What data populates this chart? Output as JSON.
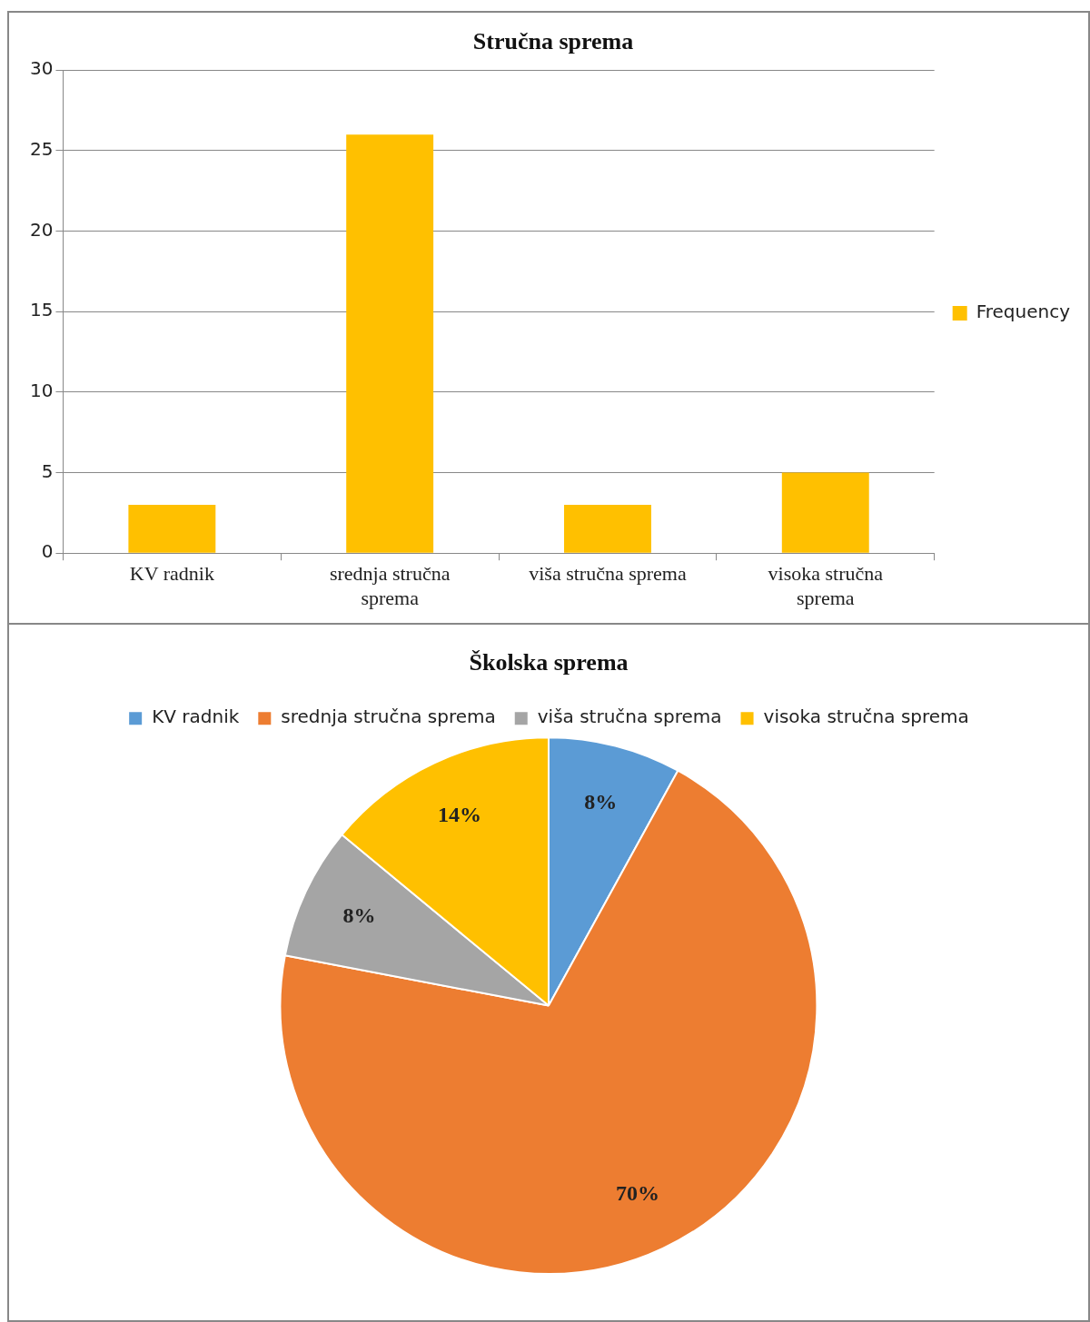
{
  "chart_data": [
    {
      "type": "bar",
      "title": "Stručna sprema",
      "categories": [
        "KV radnik",
        "srednja stručna sprema",
        "viša stručna sprema",
        "visoka stručna sprema"
      ],
      "series": [
        {
          "name": "Frequency",
          "color": "#ffc000",
          "values": [
            3,
            26,
            3,
            5
          ]
        }
      ],
      "ylim": [
        0,
        30
      ],
      "yticks": [
        0,
        5,
        10,
        15,
        20,
        25,
        30
      ],
      "grid": "y",
      "legend": "right"
    },
    {
      "type": "pie",
      "title": "Školska sprema",
      "categories": [
        "KV radnik",
        "srednja stručna sprema",
        "viša stručna sprema",
        "visoka stručna sprema"
      ],
      "values": [
        8,
        70,
        8,
        14
      ],
      "colors": [
        "#5b9bd5",
        "#ed7d31",
        "#a5a5a5",
        "#ffc000"
      ],
      "value_labels": [
        "8%",
        "70%",
        "8%",
        "14%"
      ],
      "legend": "top"
    }
  ]
}
